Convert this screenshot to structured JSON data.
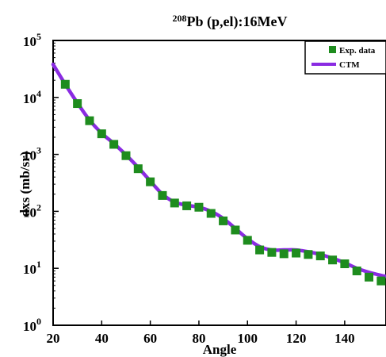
{
  "chart_data": {
    "type": "line",
    "title": {
      "superscript": "208",
      "text": "Pb (p,el):16MeV"
    },
    "xlabel": "Angle",
    "ylabel": "dxs (mb/sr)",
    "xlim": [
      20,
      157
    ],
    "ylim": [
      1,
      100000
    ],
    "yscale": "log",
    "x_ticks": [
      "20",
      "40",
      "60",
      "80",
      "100",
      "120",
      "140"
    ],
    "y_ticks": [
      {
        "base": "10",
        "exp": "0"
      },
      {
        "base": "10",
        "exp": "1"
      },
      {
        "base": "10",
        "exp": "2"
      },
      {
        "base": "10",
        "exp": "3"
      },
      {
        "base": "10",
        "exp": "4"
      },
      {
        "base": "10",
        "exp": "5"
      }
    ],
    "legend_position": "top-right",
    "series": [
      {
        "name": "Exp. data",
        "kind": "markers",
        "marker": "square",
        "color": "#1e8c1e",
        "x": [
          25,
          30,
          35,
          40,
          45,
          50,
          55,
          60,
          65,
          70,
          75,
          80,
          85,
          90,
          95,
          100,
          105,
          110,
          115,
          120,
          125,
          130,
          135,
          140,
          145,
          150,
          155
        ],
        "y": [
          17000,
          7800,
          3900,
          2300,
          1500,
          950,
          560,
          330,
          190,
          140,
          125,
          118,
          92,
          68,
          47,
          31,
          21,
          19,
          18,
          18.5,
          17.5,
          16.5,
          14,
          12,
          9,
          7,
          6
        ]
      },
      {
        "name": "CTM",
        "kind": "line",
        "color": "#8a2be2",
        "x": [
          20,
          25,
          30,
          35,
          40,
          45,
          50,
          55,
          60,
          65,
          70,
          75,
          80,
          85,
          90,
          95,
          100,
          105,
          110,
          115,
          120,
          125,
          130,
          135,
          140,
          145,
          150,
          155,
          157
        ],
        "y": [
          38000,
          17000,
          8000,
          4000,
          2350,
          1550,
          980,
          590,
          340,
          200,
          145,
          128,
          118,
          100,
          75,
          50,
          33,
          24,
          21,
          21,
          21,
          19.5,
          17.5,
          15,
          12.5,
          10,
          8.5,
          7.5,
          7.2
        ]
      }
    ]
  }
}
